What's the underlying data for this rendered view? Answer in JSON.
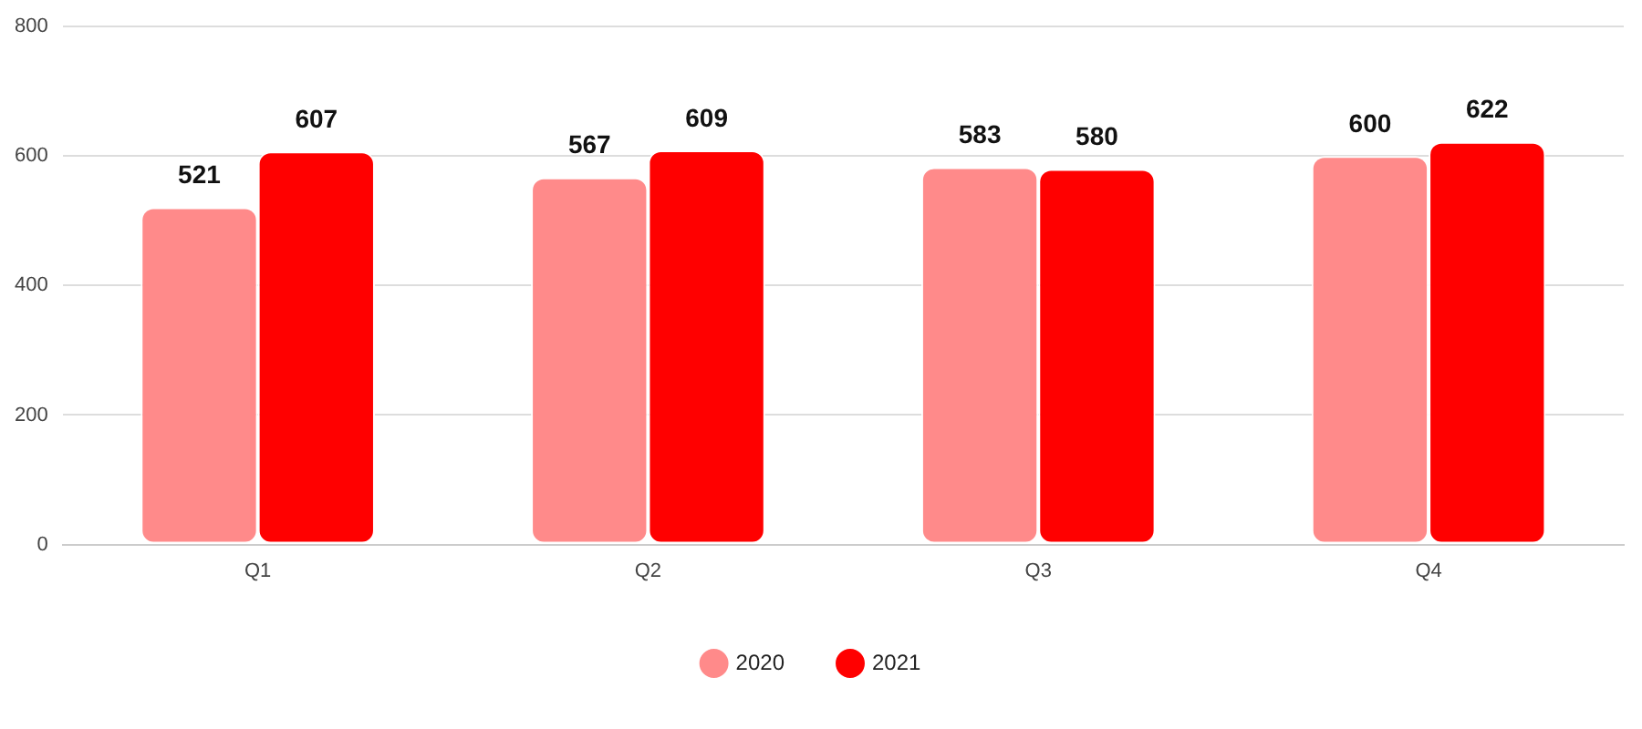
{
  "chart_data": {
    "type": "bar",
    "categories": [
      "Q1",
      "Q2",
      "Q3",
      "Q4"
    ],
    "series": [
      {
        "name": "2020",
        "color": "#ff8a8a",
        "values": [
          521,
          567,
          583,
          600
        ]
      },
      {
        "name": "2021",
        "color": "#ff0000",
        "values": [
          607,
          609,
          580,
          622
        ]
      }
    ],
    "ylim": [
      0,
      800
    ],
    "yticks": [
      0,
      200,
      400,
      600,
      800
    ],
    "grid": "y",
    "legend": "bottom",
    "data_labels": true
  }
}
